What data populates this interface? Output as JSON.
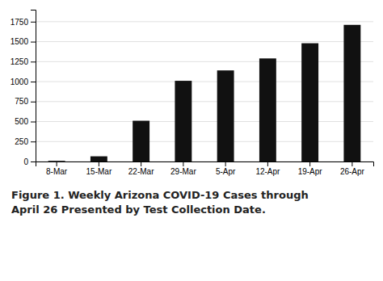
{
  "chart_data": {
    "type": "bar",
    "title": "Figure 1. Weekly Arizona COVID-19 Cases through",
    "subtitle": "April 26 Presented by Test Collection Date.",
    "categories": [
      "8-Mar",
      "15-Mar",
      "22-Mar",
      "29-Mar",
      "5-Apr",
      "12-Apr",
      "19-Apr",
      "26-Apr"
    ],
    "values": [
      8,
      65,
      510,
      1010,
      1140,
      1290,
      1480,
      1710
    ],
    "color": "#111111",
    "ylim": [
      0,
      1900
    ],
    "yticks": [
      0,
      250,
      500,
      750,
      1000,
      1250,
      1500,
      1750
    ],
    "grid": true
  }
}
